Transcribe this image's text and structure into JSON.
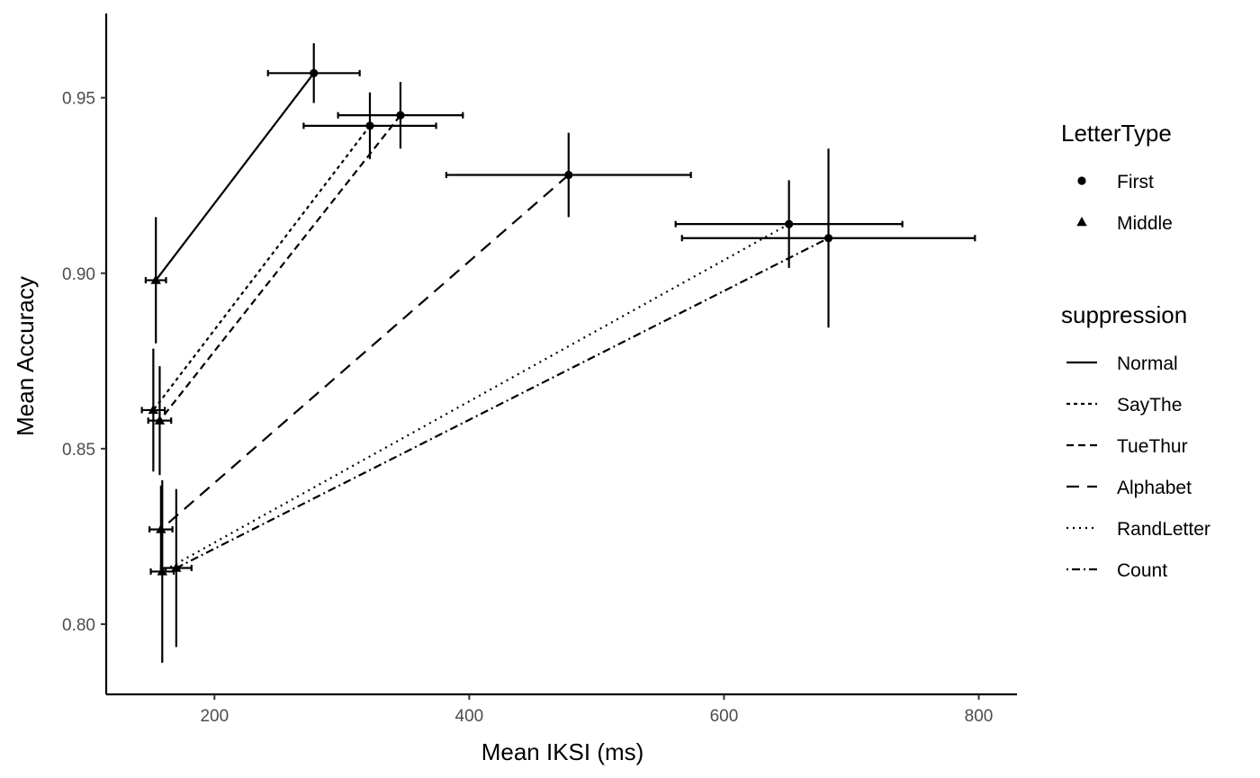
{
  "chart_data": {
    "type": "scatter",
    "xlabel": "Mean IKSI (ms)",
    "ylabel": "Mean Accuracy",
    "xlim": [
      115,
      830
    ],
    "ylim": [
      0.78,
      0.974
    ],
    "x_ticks": [
      200,
      400,
      600,
      800
    ],
    "y_ticks": [
      0.8,
      0.85,
      0.9,
      0.95
    ],
    "x_tick_labels": [
      "200",
      "400",
      "600",
      "800"
    ],
    "y_tick_labels": [
      "0.80",
      "0.85",
      "0.90",
      "0.95"
    ],
    "grid": false,
    "legend_position": "right",
    "legends": [
      {
        "title": "LetterType",
        "entries": [
          {
            "label": "First",
            "shape": "circle"
          },
          {
            "label": "Middle",
            "shape": "triangle"
          }
        ]
      },
      {
        "title": "suppression",
        "entries": [
          {
            "label": "Normal",
            "dash": "none"
          },
          {
            "label": "SayThe",
            "dash": "4,4"
          },
          {
            "label": "TueThur",
            "dash": "8,5"
          },
          {
            "label": "Alphabet",
            "dash": "14,9"
          },
          {
            "label": "RandLetter",
            "dash": "2,5"
          },
          {
            "label": "Count",
            "dash": "2,4,9,4"
          }
        ]
      }
    ],
    "series": [
      {
        "suppression": "Normal",
        "dash": "none",
        "points": [
          {
            "letter": "First",
            "x": 278,
            "y": 0.957,
            "xerr": 36,
            "yerr": 0.0085
          },
          {
            "letter": "Middle",
            "x": 154,
            "y": 0.898,
            "xerr": 8,
            "yerr": 0.018
          }
        ]
      },
      {
        "suppression": "SayThe",
        "dash": "4,4",
        "points": [
          {
            "letter": "First",
            "x": 322,
            "y": 0.942,
            "xerr": 52,
            "yerr": 0.0095
          },
          {
            "letter": "Middle",
            "x": 152,
            "y": 0.861,
            "xerr": 9,
            "yerr": 0.0175
          }
        ]
      },
      {
        "suppression": "TueThur",
        "dash": "8,5",
        "points": [
          {
            "letter": "First",
            "x": 346,
            "y": 0.945,
            "xerr": 49,
            "yerr": 0.0095
          },
          {
            "letter": "Middle",
            "x": 157,
            "y": 0.858,
            "xerr": 9,
            "yerr": 0.0155
          }
        ]
      },
      {
        "suppression": "Alphabet",
        "dash": "14,9",
        "points": [
          {
            "letter": "First",
            "x": 478,
            "y": 0.928,
            "xerr": 96,
            "yerr": 0.012
          },
          {
            "letter": "Middle",
            "x": 158,
            "y": 0.827,
            "xerr": 9,
            "yerr": 0.0125
          }
        ]
      },
      {
        "suppression": "RandLetter",
        "dash": "2,5",
        "points": [
          {
            "letter": "First",
            "x": 651,
            "y": 0.914,
            "xerr": 89,
            "yerr": 0.0125
          },
          {
            "letter": "Middle",
            "x": 159,
            "y": 0.815,
            "xerr": 9,
            "yerr": 0.026
          }
        ]
      },
      {
        "suppression": "Count",
        "dash": "2,4,9,4",
        "points": [
          {
            "letter": "First",
            "x": 682,
            "y": 0.91,
            "xerr": 115,
            "yerr": 0.0255
          },
          {
            "letter": "Middle",
            "x": 170,
            "y": 0.816,
            "xerr": 12,
            "yerr": 0.0225
          }
        ]
      }
    ]
  }
}
